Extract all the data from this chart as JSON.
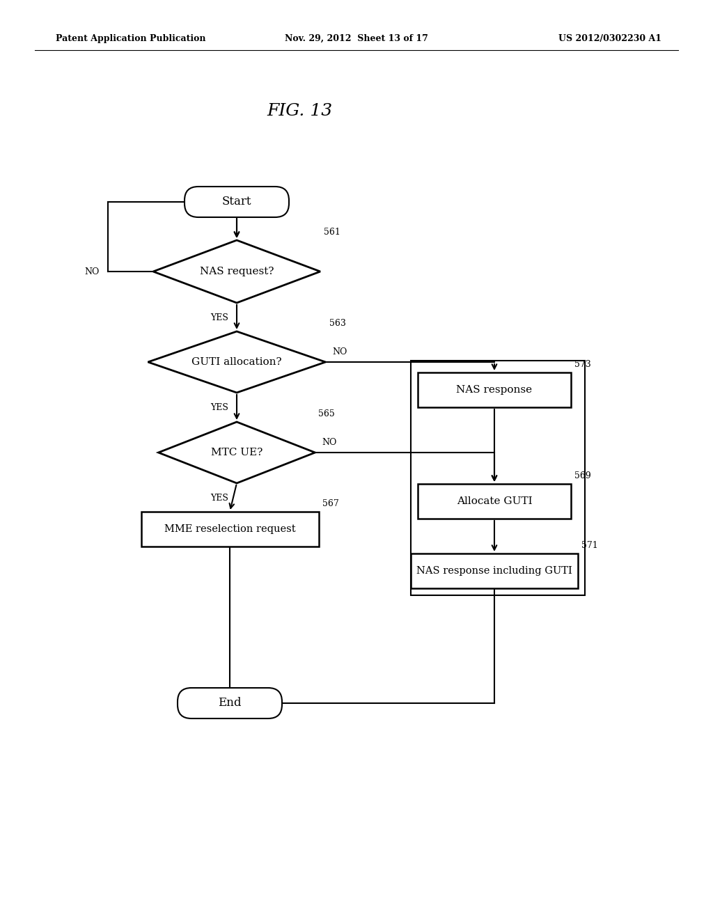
{
  "header_left": "Patent Application Publication",
  "header_mid": "Nov. 29, 2012  Sheet 13 of 17",
  "header_right": "US 2012/0302230 A1",
  "title": "FIG. 13",
  "bg_color": "#ffffff",
  "start_label": "Start",
  "end_label": "End",
  "d561_label": "NAS request?",
  "d561_num": "561",
  "d563_label": "GUTI allocation?",
  "d563_num": "563",
  "d565_label": "MTC UE?",
  "d565_num": "565",
  "b567_label": "MME reselection request",
  "b567_num": "567",
  "b573_label": "NAS response",
  "b573_num": "573",
  "b569_label": "Allocate GUTI",
  "b569_num": "569",
  "b571_label": "NAS response including GUTI",
  "b571_num": "571"
}
